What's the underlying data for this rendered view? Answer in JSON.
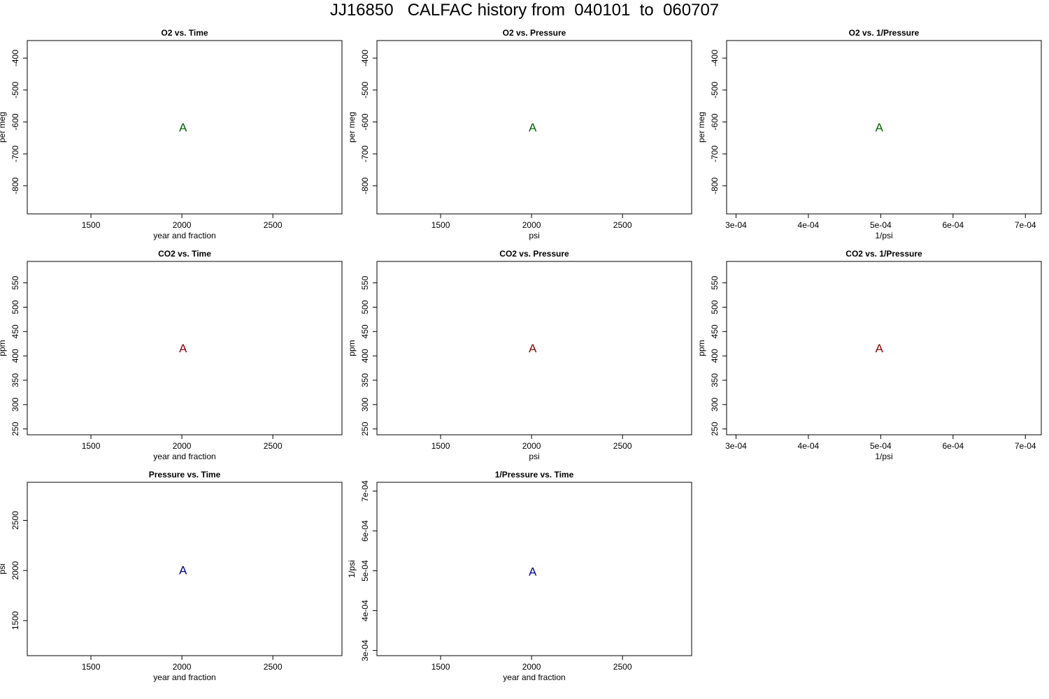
{
  "page_title": "JJ16850   CALFAC history from  040101  to  060707",
  "colors": {
    "o2": "#006400",
    "co2": "#8b0000",
    "pressure": "#00008b"
  },
  "chart_data": [
    {
      "type": "scatter",
      "title": "O2 vs. Time",
      "xlabel": "year and fraction",
      "ylabel": "per meg",
      "xlim": [
        1150,
        2880
      ],
      "ylim": [
        -888,
        -345
      ],
      "x_ticks": [
        1500,
        2000,
        2500
      ],
      "y_ticks": [
        -400,
        -500,
        -600,
        -700,
        -800
      ],
      "x_tick_labels": [
        "1500",
        "2000",
        "2500"
      ],
      "y_tick_labels": [
        "-400",
        "-500",
        "-600",
        "-700",
        "-800"
      ],
      "color": "#006400",
      "points": [
        {
          "x": 2006,
          "y": -617,
          "label": "A"
        }
      ]
    },
    {
      "type": "scatter",
      "title": "O2 vs. Pressure",
      "xlabel": "psi",
      "ylabel": "per meg",
      "xlim": [
        1150,
        2880
      ],
      "ylim": [
        -888,
        -345
      ],
      "x_ticks": [
        1500,
        2000,
        2500
      ],
      "y_ticks": [
        -400,
        -500,
        -600,
        -700,
        -800
      ],
      "x_tick_labels": [
        "1500",
        "2000",
        "2500"
      ],
      "y_tick_labels": [
        "-400",
        "-500",
        "-600",
        "-700",
        "-800"
      ],
      "color": "#006400",
      "points": [
        {
          "x": 2006,
          "y": -617,
          "label": "A"
        }
      ]
    },
    {
      "type": "scatter",
      "title": "O2 vs. 1/Pressure",
      "xlabel": "1/psi",
      "ylabel": "per meg",
      "xlim": [
        0.000287,
        0.000722
      ],
      "ylim": [
        -888,
        -345
      ],
      "x_ticks": [
        0.0003,
        0.0004,
        0.0005,
        0.0006,
        0.0007
      ],
      "y_ticks": [
        -400,
        -500,
        -600,
        -700,
        -800
      ],
      "x_tick_labels": [
        "3e-04",
        "4e-04",
        "5e-04",
        "6e-04",
        "7e-04"
      ],
      "y_tick_labels": [
        "-400",
        "-500",
        "-600",
        "-700",
        "-800"
      ],
      "color": "#006400",
      "points": [
        {
          "x": 0.000498,
          "y": -617,
          "label": "A"
        }
      ]
    },
    {
      "type": "scatter",
      "title": "CO2 vs. Time",
      "xlabel": "year and fraction",
      "ylabel": "ppm",
      "xlim": [
        1150,
        2880
      ],
      "ylim": [
        238,
        594
      ],
      "x_ticks": [
        1500,
        2000,
        2500
      ],
      "y_ticks": [
        250,
        300,
        350,
        400,
        450,
        500,
        550
      ],
      "x_tick_labels": [
        "1500",
        "2000",
        "2500"
      ],
      "y_tick_labels": [
        "250",
        "300",
        "350",
        "400",
        "450",
        "500",
        "550"
      ],
      "color": "#8b0000",
      "points": [
        {
          "x": 2006,
          "y": 416,
          "label": "A"
        }
      ]
    },
    {
      "type": "scatter",
      "title": "CO2 vs. Pressure",
      "xlabel": "psi",
      "ylabel": "ppm",
      "xlim": [
        1150,
        2880
      ],
      "ylim": [
        238,
        594
      ],
      "x_ticks": [
        1500,
        2000,
        2500
      ],
      "y_ticks": [
        250,
        300,
        350,
        400,
        450,
        500,
        550
      ],
      "x_tick_labels": [
        "1500",
        "2000",
        "2500"
      ],
      "y_tick_labels": [
        "250",
        "300",
        "350",
        "400",
        "450",
        "500",
        "550"
      ],
      "color": "#8b0000",
      "points": [
        {
          "x": 2006,
          "y": 416,
          "label": "A"
        }
      ]
    },
    {
      "type": "scatter",
      "title": "CO2 vs. 1/Pressure",
      "xlabel": "1/psi",
      "ylabel": "ppm",
      "xlim": [
        0.000287,
        0.000722
      ],
      "ylim": [
        238,
        594
      ],
      "x_ticks": [
        0.0003,
        0.0004,
        0.0005,
        0.0006,
        0.0007
      ],
      "y_ticks": [
        250,
        300,
        350,
        400,
        450,
        500,
        550
      ],
      "x_tick_labels": [
        "3e-04",
        "4e-04",
        "5e-04",
        "6e-04",
        "7e-04"
      ],
      "y_tick_labels": [
        "250",
        "300",
        "350",
        "400",
        "450",
        "500",
        "550"
      ],
      "color": "#8b0000",
      "points": [
        {
          "x": 0.000498,
          "y": 416,
          "label": "A"
        }
      ]
    },
    {
      "type": "scatter",
      "title": "Pressure vs. Time",
      "xlabel": "year and fraction",
      "ylabel": "psi",
      "xlim": [
        1150,
        2880
      ],
      "ylim": [
        1150,
        2880
      ],
      "x_ticks": [
        1500,
        2000,
        2500
      ],
      "y_ticks": [
        1500,
        2000,
        2500
      ],
      "x_tick_labels": [
        "1500",
        "2000",
        "2500"
      ],
      "y_tick_labels": [
        "1500",
        "2000",
        "2500"
      ],
      "color": "#00008b",
      "points": [
        {
          "x": 2006,
          "y": 2006,
          "label": "A"
        }
      ]
    },
    {
      "type": "scatter",
      "title": "1/Pressure vs. Time",
      "xlabel": "year and fraction",
      "ylabel": "1/psi",
      "xlim": [
        1150,
        2880
      ],
      "ylim": [
        0.000287,
        0.000722
      ],
      "x_ticks": [
        1500,
        2000,
        2500
      ],
      "y_ticks": [
        0.0003,
        0.0004,
        0.0005,
        0.0006,
        0.0007
      ],
      "x_tick_labels": [
        "1500",
        "2000",
        "2500"
      ],
      "y_tick_labels": [
        "3e-04",
        "4e-04",
        "5e-04",
        "6e-04",
        "7e-04"
      ],
      "color": "#00008b",
      "points": [
        {
          "x": 2006,
          "y": 0.000498,
          "label": "A"
        }
      ]
    }
  ]
}
